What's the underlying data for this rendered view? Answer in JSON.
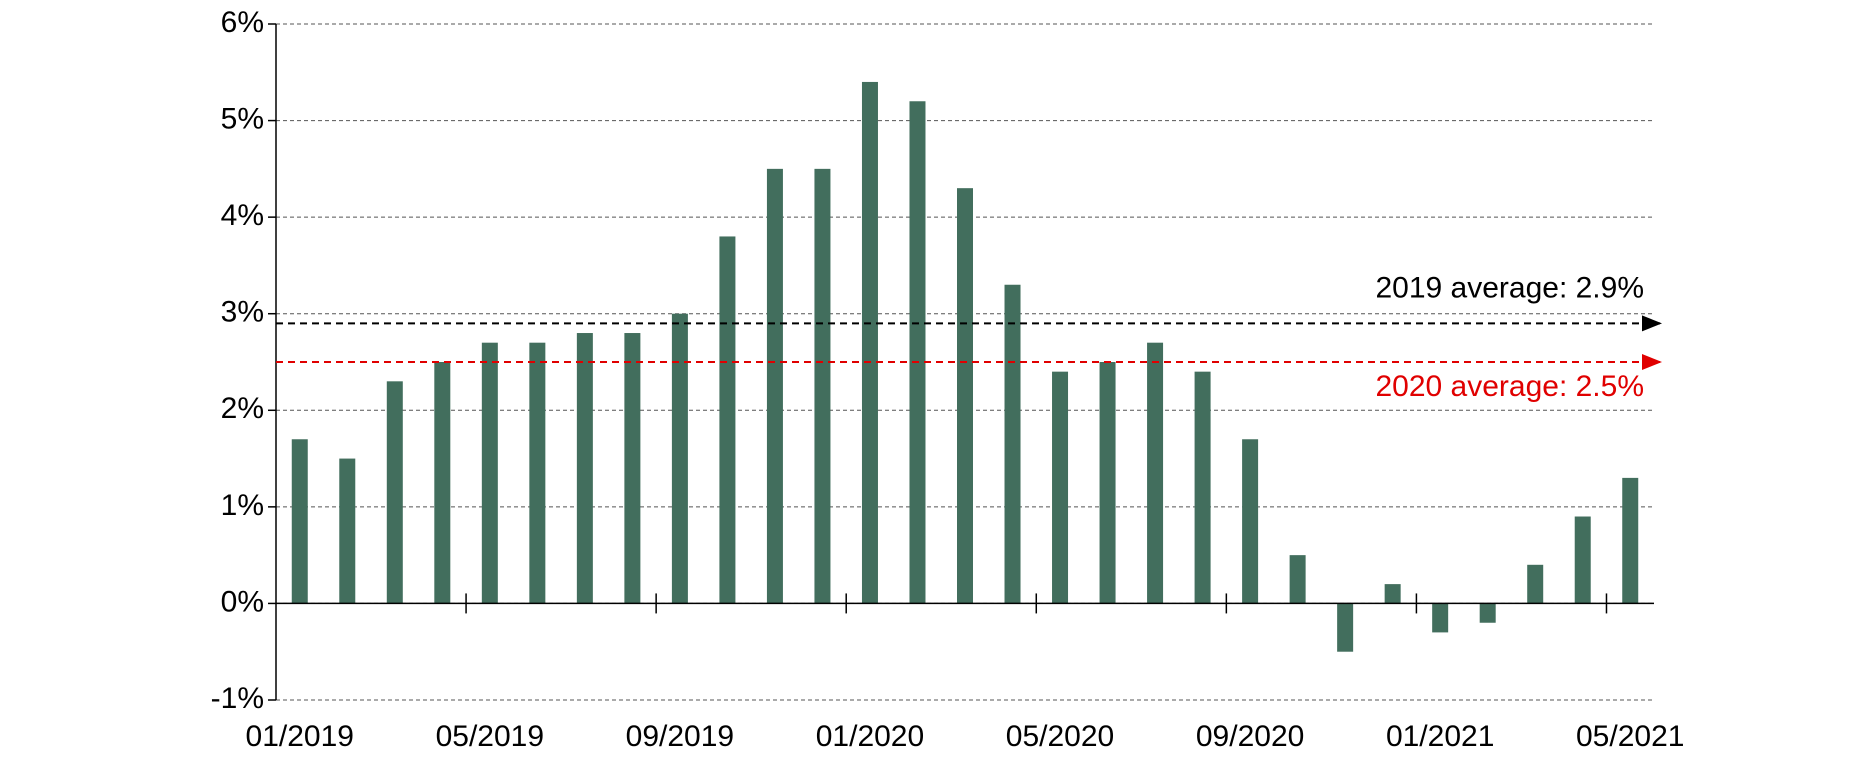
{
  "chart_data": {
    "type": "bar",
    "categories": [
      "01/2019",
      null,
      null,
      null,
      "05/2019",
      null,
      null,
      null,
      "09/2019",
      null,
      null,
      null,
      "01/2020",
      null,
      null,
      null,
      "05/2020",
      null,
      null,
      null,
      "09/2020",
      null,
      null,
      null,
      "01/2021",
      null,
      null,
      null,
      "05/2021"
    ],
    "values": [
      1.7,
      1.5,
      2.3,
      2.5,
      2.7,
      2.7,
      2.8,
      2.8,
      3.0,
      3.8,
      4.5,
      4.5,
      5.4,
      5.2,
      4.3,
      3.3,
      2.4,
      2.5,
      2.7,
      2.4,
      1.7,
      0.5,
      -0.5,
      0.2,
      -0.3,
      -0.2,
      0.4,
      0.9,
      1.3
    ],
    "color": "#426e5d",
    "ylim": [
      -1,
      6
    ],
    "yticks": [
      {
        "value": -1,
        "label": "-1%"
      },
      {
        "value": 0,
        "label": "0%"
      },
      {
        "value": 1,
        "label": "1%"
      },
      {
        "value": 2,
        "label": "2%"
      },
      {
        "value": 3,
        "label": "3%"
      },
      {
        "value": 4,
        "label": "4%"
      },
      {
        "value": 5,
        "label": "5%"
      },
      {
        "value": 6,
        "label": "6%"
      }
    ],
    "grid": true,
    "reference_lines": [
      {
        "label": "2019 average: 2.9%",
        "value": 2.9,
        "color": "#000000"
      },
      {
        "label": "2020 average: 2.5%",
        "value": 2.5,
        "color": "#e00000"
      }
    ]
  }
}
